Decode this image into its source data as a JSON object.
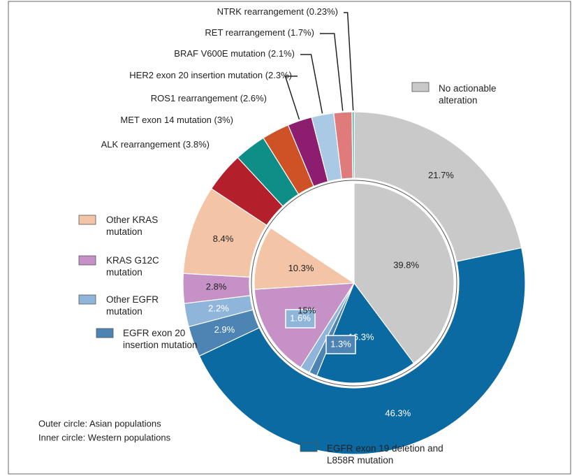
{
  "chart_data": {
    "type": "nested-donut",
    "categories": [
      "No actionable alteration",
      "EGFR exon 19 deletion and L858R mutation",
      "EGFR exon 20 insertion mutation",
      "Other EGFR mutation",
      "KRAS G12C mutation",
      "Other KRAS mutation",
      "ALK rearrangement",
      "MET exon 14 mutation",
      "ROS1 rearrangement",
      "HER2 exon 20 insertion mutation",
      "BRAF V600E mutation",
      "RET rearrangement",
      "NTRK rearrangement"
    ],
    "colors": [
      "#c9c9c9",
      "#0b6aa2",
      "#4d84b4",
      "#8fb6da",
      "#c591c7",
      "#f3c4a6",
      "#b31f2b",
      "#0f8d87",
      "#cf5126",
      "#8c1d6f",
      "#a9c9e5",
      "#e07b7b",
      "#70c2c2"
    ],
    "series": [
      {
        "name": "Outer circle: Asian populations",
        "values": [
          21.7,
          46.3,
          2.9,
          2.2,
          2.8,
          8.4,
          3.8,
          3,
          2.6,
          2.3,
          2.1,
          1.7,
          0.23
        ],
        "value_labels": [
          "21.7%",
          "46.3%",
          "2.9%",
          "2.2%",
          "2.8%",
          "8.4%",
          "(3.8%)",
          "(3%)",
          "(2.6%)",
          "(2.3%)",
          "(2.1%)",
          "(1.7%)",
          "(0.23%)"
        ]
      },
      {
        "name": "Inner circle: Western populations",
        "values": [
          39.8,
          16.3,
          1.3,
          1.6,
          15,
          10.3,
          null,
          null,
          null,
          null,
          null,
          null,
          null
        ],
        "value_labels": [
          "39.8%",
          "16.3%",
          "1.3%",
          "1.6%",
          "15%",
          "10.3%",
          null,
          null,
          null,
          null,
          null,
          null,
          null
        ]
      }
    ]
  }
}
